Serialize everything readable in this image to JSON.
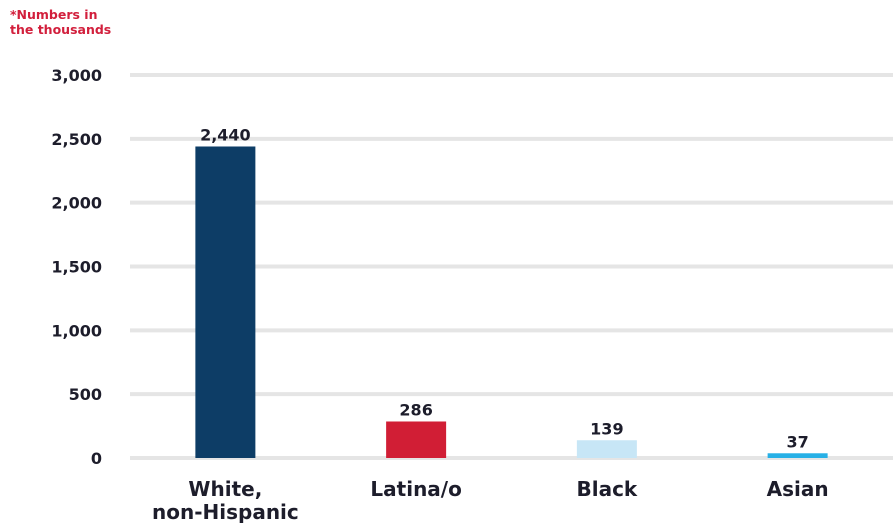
{
  "chart_data": {
    "type": "bar",
    "annotation": "*Numbers in the thousands",
    "categories": [
      "White, non-Hispanic",
      "Latina/o",
      "Black",
      "Asian"
    ],
    "values": [
      2440,
      286,
      139,
      37
    ],
    "data_labels": [
      "2,440",
      "286",
      "139",
      "37"
    ],
    "colors": [
      "#0d3d66",
      "#d11e35",
      "#c7e6f6",
      "#27b0e6"
    ],
    "gridline_color": "#e5e5e5",
    "y_ticks": [
      0,
      500,
      1000,
      1500,
      2000,
      2500,
      3000
    ],
    "y_tick_labels": [
      "0",
      "500",
      "1,000",
      "1,500",
      "2,000",
      "2,500",
      "3,000"
    ],
    "ylim": [
      0,
      3000
    ],
    "grid": true,
    "legend": "none"
  }
}
